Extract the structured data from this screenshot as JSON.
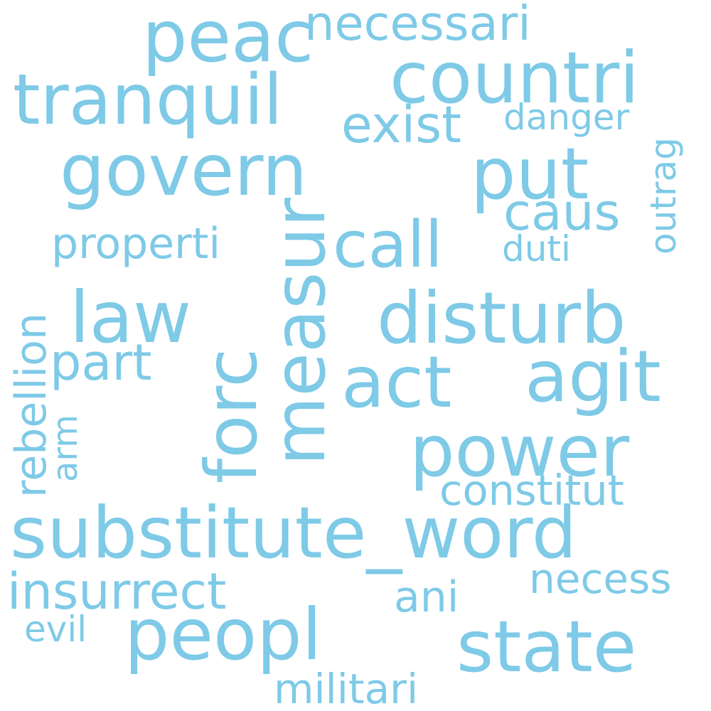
{
  "color": "#7ecae7",
  "words": {
    "peac": "peac",
    "necessari": "necessari",
    "countri": "countri",
    "tranquil": "tranquil",
    "exist": "exist",
    "danger": "danger",
    "outrag": "outrag",
    "govern": "govern",
    "put": "put",
    "caus": "caus",
    "measur": "measur",
    "call": "call",
    "properti": "properti",
    "duti": "duti",
    "rebellion": "rebellion",
    "law": "law",
    "disturb": "disturb",
    "forc": "forc",
    "part": "part",
    "act": "act",
    "agit": "agit",
    "arm": "arm",
    "power": "power",
    "constitut": "constitut",
    "substitute_word": "substitute_word",
    "insurrect": "insurrect",
    "necess": "necess",
    "ani": "ani",
    "evil": "evil",
    "peopl": "peopl",
    "state": "state",
    "militari": "militari"
  }
}
